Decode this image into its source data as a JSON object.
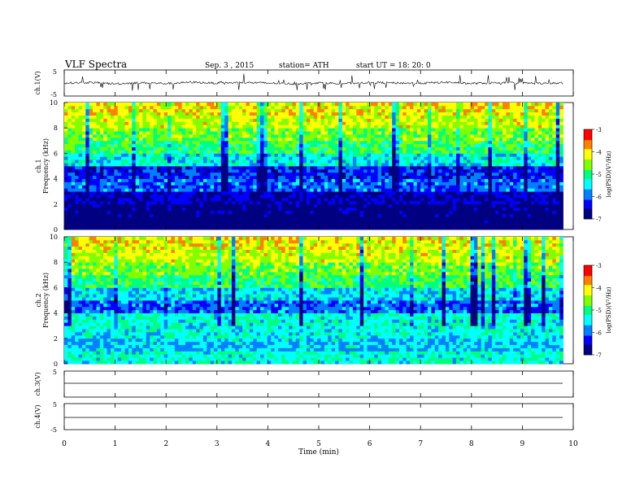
{
  "header": {
    "title": "VLF  Spectra",
    "date": "Sep. 3  , 2015",
    "station": "station= ATH",
    "start": "start  UT =    18: 20: 0"
  },
  "colors": {
    "colormap": [
      "#000080",
      "#0000ff",
      "#0080ff",
      "#00ffff",
      "#00ff80",
      "#80ff00",
      "#ffff00",
      "#ff8000",
      "#ff0000",
      "#ffffff"
    ]
  },
  "chart_data": [
    {
      "type": "line",
      "ylabel": "ch.1(V)",
      "ylim": [
        -5,
        5
      ],
      "yticks": [
        "5",
        "-5"
      ],
      "x": [
        0,
        0.5,
        1,
        1.5,
        2,
        2.5,
        3,
        3.5,
        4,
        4.5,
        5,
        5.5,
        6,
        6.5,
        7,
        7.5,
        8,
        8.5,
        9,
        9.5,
        9.8
      ],
      "y": [
        0,
        0.2,
        -0.3,
        0.1,
        -0.2,
        0.3,
        -0.1,
        0.2,
        0,
        -0.3,
        0.1,
        -0.2,
        0.2,
        0,
        -0.1,
        0.3,
        -0.2,
        0.1,
        0,
        -0.2,
        0
      ]
    },
    {
      "type": "heatmap",
      "ylabel": "ch.1\nFrequency  (kHz)",
      "ylim": [
        0,
        10
      ],
      "yticks": [
        "0",
        "2",
        "4",
        "6",
        "8",
        "10"
      ],
      "xlim": [
        0,
        10
      ],
      "data_end_min": 9.8,
      "colorbar": {
        "label": "log(PSD)(V²/Hz)",
        "range": [
          -7,
          -3
        ],
        "ticks": [
          "-3",
          "-4",
          "-5",
          "-6",
          "-7"
        ]
      },
      "freq_kHz": [
        0.5,
        1.5,
        2.5,
        3.5,
        4.5,
        5.5,
        6.5,
        7.5,
        8.5,
        9.5
      ],
      "mean_log_psd": [
        -7,
        -6.9,
        -6.6,
        -6.0,
        -6.3,
        -5.4,
        -4.9,
        -4.6,
        -4.3,
        -4.1
      ]
    },
    {
      "type": "heatmap",
      "ylabel": "ch.2\nFrequency  (kHz)",
      "ylim": [
        0,
        10
      ],
      "yticks": [
        "0",
        "2",
        "4",
        "6",
        "8",
        "10"
      ],
      "xlim": [
        0,
        10
      ],
      "data_end_min": 9.8,
      "colorbar": {
        "label": "log(PSD)(V²/Hz)",
        "range": [
          -7,
          -3
        ],
        "ticks": [
          "-3",
          "-4",
          "-5",
          "-6",
          "-7"
        ]
      },
      "freq_kHz": [
        0.5,
        1.5,
        2.5,
        3.5,
        4.5,
        5.5,
        6.5,
        7.5,
        8.5,
        9.5
      ],
      "mean_log_psd": [
        -5.3,
        -5.6,
        -5.4,
        -5.3,
        -6.0,
        -5.5,
        -4.9,
        -4.6,
        -4.3,
        -4.1
      ]
    },
    {
      "type": "line",
      "ylabel": "ch.3(V)",
      "ylim": [
        -5,
        5
      ],
      "yticks": [
        "5"
      ],
      "x": [
        0,
        9.8
      ],
      "y": [
        0,
        0
      ]
    },
    {
      "type": "line",
      "ylabel": "ch.4(V)",
      "ylim": [
        -5,
        5
      ],
      "yticks": [
        "5",
        "-5"
      ],
      "x": [
        0,
        9.8
      ],
      "y": [
        0,
        0
      ]
    }
  ],
  "xaxis": {
    "label": "Time  (min)",
    "xlim": [
      0,
      10
    ],
    "ticks": [
      "0",
      "1",
      "2",
      "3",
      "4",
      "5",
      "6",
      "7",
      "8",
      "9",
      "10"
    ]
  }
}
